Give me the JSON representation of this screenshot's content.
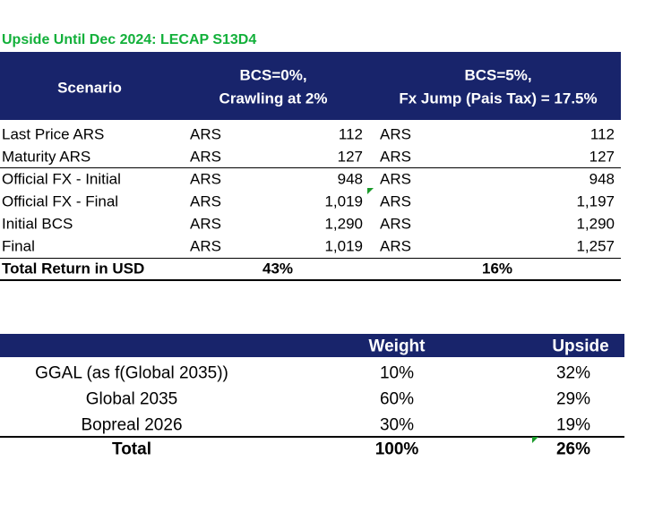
{
  "title": "Upside Until Dec 2024: LECAP S13D4",
  "table1": {
    "headers": {
      "scenario": "Scenario",
      "case1": [
        "BCS=0%,",
        "Crawling at 2%"
      ],
      "case2": [
        "BCS=5%,",
        "Fx Jump (Pais Tax) = 17.5%"
      ]
    },
    "rows": [
      [
        "Last Price ARS",
        "ARS",
        "112",
        "ARS",
        "112"
      ],
      [
        "Maturity ARS",
        "ARS",
        "127",
        "ARS",
        "127"
      ],
      [
        "Official FX - Initial",
        "ARS",
        "948",
        "ARS",
        "948"
      ],
      [
        "Official FX - Final",
        "ARS",
        "1,019",
        "ARS",
        "1,197"
      ],
      [
        "Initial BCS",
        "ARS",
        "1,290",
        "ARS",
        "1,290"
      ],
      [
        "Final",
        "ARS",
        "1,019",
        "ARS",
        "1,257"
      ]
    ],
    "total": [
      "Total Return in USD",
      "43%",
      "16%"
    ]
  },
  "table2": {
    "headers": {
      "weight": "Weight",
      "upside": "Upside"
    },
    "rows": [
      [
        "GGAL (as f(Global 2035))",
        "10%",
        "32%"
      ],
      [
        "Global 2035",
        "60%",
        "29%"
      ],
      [
        "Bopreal 2026",
        "30%",
        "19%"
      ]
    ],
    "total": [
      "Total",
      "100%",
      "26%"
    ]
  }
}
